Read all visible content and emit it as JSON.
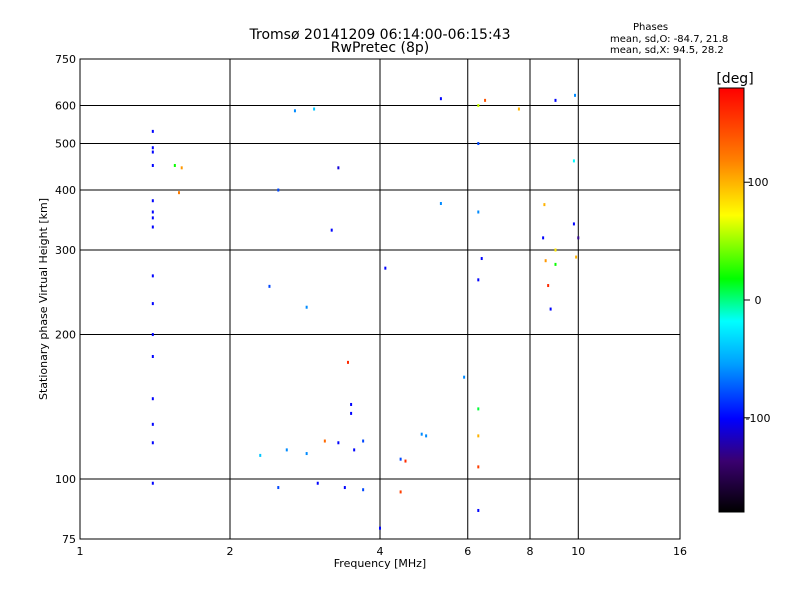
{
  "chart_data": {
    "type": "scatter",
    "title": "Tromsø 20141209 06:14:00-06:15:43",
    "subtitle": "RwPretec (8p)",
    "xlabel": "Frequency [MHz]",
    "ylabel": "Stationary phase Virtual Height [km]",
    "xscale": "log",
    "yscale": "log",
    "xlim": [
      1,
      16
    ],
    "ylim": [
      75,
      750
    ],
    "x_ticks": [
      1,
      2,
      4,
      6,
      8,
      10,
      16
    ],
    "x_tick_labels": [
      "1",
      "2",
      "4",
      "6",
      "8",
      "10",
      "16"
    ],
    "y_ticks": [
      75,
      100,
      200,
      300,
      400,
      500,
      600,
      750
    ],
    "y_tick_labels": [
      "75",
      "100",
      "200",
      "300",
      "400",
      "500",
      "600",
      "750"
    ],
    "grid": true,
    "stats_title": "Phases",
    "stats_o": "mean, sd,O: -84.7, 21.8",
    "stats_x": "mean, sd,X:  94.5, 28.2",
    "colorbar": {
      "label": "[deg]",
      "range": [
        -180,
        180
      ],
      "ticks": [
        100,
        0,
        -100
      ],
      "tick_labels": [
        "100",
        "0",
        "-100"
      ],
      "colors": [
        "#000000",
        "#3a0070",
        "#0000ff",
        "#00a0ff",
        "#00ffff",
        "#00ff00",
        "#ffff00",
        "#ff8000",
        "#ff0000"
      ]
    },
    "series": [
      {
        "points": [
          [
            1.4,
            530,
            -100
          ],
          [
            1.4,
            490,
            -100
          ],
          [
            1.4,
            480,
            -100
          ],
          [
            1.4,
            450,
            -100
          ],
          [
            1.4,
            380,
            -100
          ],
          [
            1.4,
            360,
            -100
          ],
          [
            1.4,
            350,
            -100
          ],
          [
            1.4,
            335,
            -100
          ],
          [
            1.4,
            265,
            -100
          ],
          [
            1.4,
            232,
            -100
          ],
          [
            1.4,
            200,
            -100
          ],
          [
            1.4,
            180,
            -100
          ],
          [
            1.4,
            147,
            -100
          ],
          [
            1.4,
            130,
            -100
          ],
          [
            1.4,
            119,
            -100
          ],
          [
            1.4,
            98,
            -100
          ],
          [
            1.55,
            450,
            20
          ],
          [
            1.58,
            395,
            120
          ],
          [
            1.6,
            445,
            110
          ],
          [
            2.4,
            252,
            -80
          ],
          [
            2.85,
            228,
            -60
          ],
          [
            2.5,
            400,
            -80
          ],
          [
            2.7,
            585,
            -60
          ],
          [
            2.95,
            590,
            -40
          ],
          [
            3.2,
            330,
            -100
          ],
          [
            3.3,
            445,
            -110
          ],
          [
            3.45,
            175,
            160
          ],
          [
            3.5,
            143,
            -100
          ],
          [
            3.5,
            137,
            -100
          ],
          [
            4.1,
            275,
            -100
          ],
          [
            5.3,
            620,
            -100
          ],
          [
            5.3,
            375,
            -60
          ],
          [
            5.9,
            163,
            -60
          ],
          [
            6.3,
            600,
            60
          ],
          [
            6.5,
            615,
            140
          ],
          [
            6.3,
            500,
            -80
          ],
          [
            6.3,
            360,
            -60
          ],
          [
            6.3,
            260,
            -100
          ],
          [
            6.4,
            288,
            -100
          ],
          [
            6.3,
            140,
            10
          ],
          [
            6.3,
            123,
            100
          ],
          [
            6.3,
            106,
            150
          ],
          [
            6.3,
            86,
            -100
          ],
          [
            7.6,
            590,
            100
          ],
          [
            8.5,
            318,
            -100
          ],
          [
            8.55,
            373,
            100
          ],
          [
            8.6,
            285,
            110
          ],
          [
            8.7,
            253,
            160
          ],
          [
            8.8,
            226,
            -100
          ],
          [
            9.0,
            280,
            20
          ],
          [
            9.0,
            300,
            80
          ],
          [
            9.0,
            615,
            -100
          ],
          [
            9.8,
            460,
            -20
          ],
          [
            9.8,
            340,
            -100
          ],
          [
            10.0,
            318,
            -130
          ],
          [
            9.85,
            630,
            -60
          ],
          [
            9.9,
            290,
            100
          ],
          [
            3.1,
            120,
            130
          ],
          [
            3.3,
            119,
            -100
          ],
          [
            3.55,
            115,
            -100
          ],
          [
            3.7,
            120,
            -80
          ],
          [
            4.4,
            110,
            -80
          ],
          [
            4.5,
            109,
            160
          ],
          [
            4.85,
            124,
            -60
          ],
          [
            4.95,
            123,
            -60
          ],
          [
            3.4,
            96,
            -100
          ],
          [
            3.7,
            95,
            -80
          ],
          [
            4.4,
            94,
            150
          ],
          [
            3.0,
            98,
            -100
          ],
          [
            2.5,
            96,
            -80
          ],
          [
            2.3,
            112,
            -40
          ],
          [
            2.6,
            115,
            -60
          ],
          [
            2.85,
            113,
            -60
          ],
          [
            4.0,
            79,
            -100
          ]
        ]
      }
    ]
  }
}
